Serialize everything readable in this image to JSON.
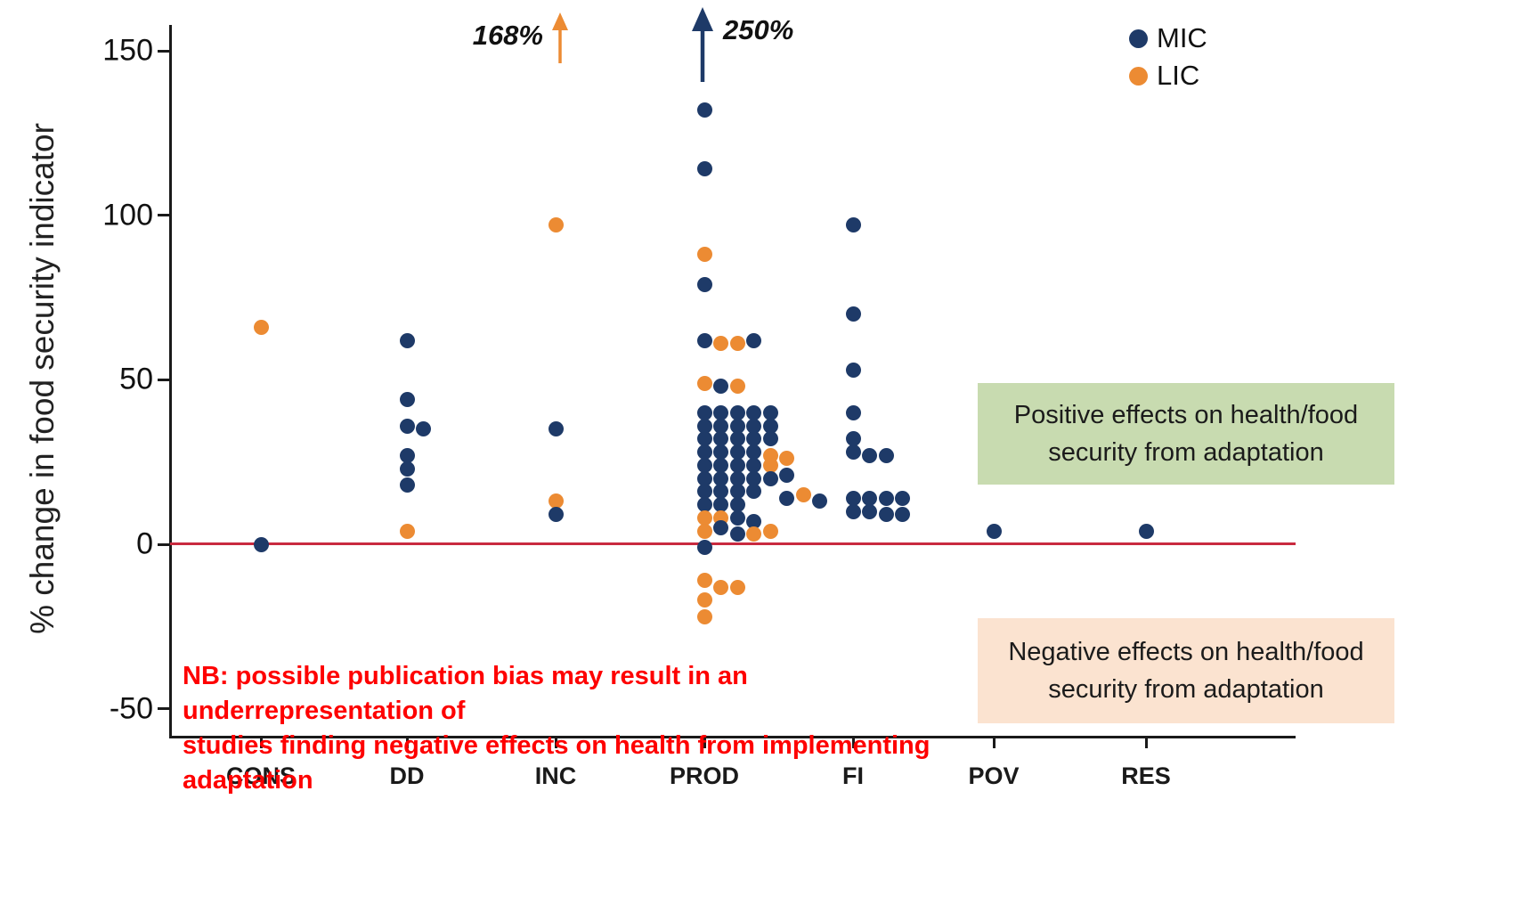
{
  "chart_data": {
    "type": "scatter",
    "title": "",
    "ylabel": "% change in food security indicator",
    "xlabel": "",
    "categories": [
      "CONS",
      "DD",
      "INC",
      "PROD",
      "FI",
      "POV",
      "RES"
    ],
    "yticks": [
      150,
      100,
      50,
      0,
      -50
    ],
    "ylim": [
      -60,
      158
    ],
    "grid": false,
    "legend_position": "top-right",
    "zero_line_color": "#c92a3f",
    "series_colors": {
      "MIC": "#1e3a68",
      "LIC": "#ec8b33"
    },
    "legend": [
      {
        "label": "MIC",
        "color": "#1e3a68"
      },
      {
        "label": "LIC",
        "color": "#ec8b33"
      }
    ],
    "annotations": [
      {
        "text": "168%",
        "series": "LIC",
        "category": "INC",
        "meaning": "off-scale LIC value indicated by orange up arrow"
      },
      {
        "text": "250%",
        "series": "MIC",
        "category": "PROD",
        "meaning": "off-scale MIC value indicated by navy up arrow"
      }
    ],
    "points": [
      {
        "c": "CONS",
        "s": "LIC",
        "v": 66,
        "dx": 0
      },
      {
        "c": "CONS",
        "s": "MIC",
        "v": 0,
        "dx": 0
      },
      {
        "c": "DD",
        "s": "MIC",
        "v": 62,
        "dx": 0
      },
      {
        "c": "DD",
        "s": "MIC",
        "v": 44,
        "dx": 0
      },
      {
        "c": "DD",
        "s": "MIC",
        "v": 36,
        "dx": 0
      },
      {
        "c": "DD",
        "s": "MIC",
        "v": 35,
        "dx": 1
      },
      {
        "c": "DD",
        "s": "MIC",
        "v": 27,
        "dx": 0
      },
      {
        "c": "DD",
        "s": "MIC",
        "v": 23,
        "dx": 0
      },
      {
        "c": "DD",
        "s": "MIC",
        "v": 18,
        "dx": 0
      },
      {
        "c": "DD",
        "s": "LIC",
        "v": 4,
        "dx": 0
      },
      {
        "c": "INC",
        "s": "LIC",
        "v": 97,
        "dx": 0
      },
      {
        "c": "INC",
        "s": "MIC",
        "v": 35,
        "dx": 0
      },
      {
        "c": "INC",
        "s": "LIC",
        "v": 13,
        "dx": 0
      },
      {
        "c": "INC",
        "s": "MIC",
        "v": 9,
        "dx": 0
      },
      {
        "c": "PROD",
        "s": "MIC",
        "v": 132,
        "dx": 0
      },
      {
        "c": "PROD",
        "s": "MIC",
        "v": 114,
        "dx": 0
      },
      {
        "c": "PROD",
        "s": "LIC",
        "v": 88,
        "dx": 0
      },
      {
        "c": "PROD",
        "s": "MIC",
        "v": 79,
        "dx": 0
      },
      {
        "c": "PROD",
        "s": "MIC",
        "v": 62,
        "dx": 0
      },
      {
        "c": "PROD",
        "s": "LIC",
        "v": 61,
        "dx": 1
      },
      {
        "c": "PROD",
        "s": "LIC",
        "v": 61,
        "dx": 2
      },
      {
        "c": "PROD",
        "s": "MIC",
        "v": 62,
        "dx": 3
      },
      {
        "c": "PROD",
        "s": "LIC",
        "v": 49,
        "dx": 0
      },
      {
        "c": "PROD",
        "s": "MIC",
        "v": 48,
        "dx": 1
      },
      {
        "c": "PROD",
        "s": "LIC",
        "v": 48,
        "dx": 2
      },
      {
        "c": "PROD",
        "s": "MIC",
        "v": 40,
        "dx": 0
      },
      {
        "c": "PROD",
        "s": "MIC",
        "v": 40,
        "dx": 1
      },
      {
        "c": "PROD",
        "s": "MIC",
        "v": 40,
        "dx": 2
      },
      {
        "c": "PROD",
        "s": "MIC",
        "v": 40,
        "dx": 3
      },
      {
        "c": "PROD",
        "s": "MIC",
        "v": 40,
        "dx": 4
      },
      {
        "c": "PROD",
        "s": "MIC",
        "v": 36,
        "dx": 0
      },
      {
        "c": "PROD",
        "s": "MIC",
        "v": 36,
        "dx": 1
      },
      {
        "c": "PROD",
        "s": "MIC",
        "v": 36,
        "dx": 2
      },
      {
        "c": "PROD",
        "s": "MIC",
        "v": 36,
        "dx": 3
      },
      {
        "c": "PROD",
        "s": "MIC",
        "v": 36,
        "dx": 4
      },
      {
        "c": "PROD",
        "s": "MIC",
        "v": 32,
        "dx": 0
      },
      {
        "c": "PROD",
        "s": "MIC",
        "v": 32,
        "dx": 1
      },
      {
        "c": "PROD",
        "s": "MIC",
        "v": 32,
        "dx": 2
      },
      {
        "c": "PROD",
        "s": "MIC",
        "v": 32,
        "dx": 3
      },
      {
        "c": "PROD",
        "s": "MIC",
        "v": 32,
        "dx": 4
      },
      {
        "c": "PROD",
        "s": "MIC",
        "v": 28,
        "dx": 0
      },
      {
        "c": "PROD",
        "s": "MIC",
        "v": 28,
        "dx": 1
      },
      {
        "c": "PROD",
        "s": "MIC",
        "v": 28,
        "dx": 2
      },
      {
        "c": "PROD",
        "s": "MIC",
        "v": 28,
        "dx": 3
      },
      {
        "c": "PROD",
        "s": "LIC",
        "v": 27,
        "dx": 4
      },
      {
        "c": "PROD",
        "s": "MIC",
        "v": 24,
        "dx": 0
      },
      {
        "c": "PROD",
        "s": "MIC",
        "v": 24,
        "dx": 1
      },
      {
        "c": "PROD",
        "s": "MIC",
        "v": 24,
        "dx": 2
      },
      {
        "c": "PROD",
        "s": "MIC",
        "v": 24,
        "dx": 3
      },
      {
        "c": "PROD",
        "s": "LIC",
        "v": 24,
        "dx": 4
      },
      {
        "c": "PROD",
        "s": "LIC",
        "v": 26,
        "dx": 5
      },
      {
        "c": "PROD",
        "s": "MIC",
        "v": 20,
        "dx": 0
      },
      {
        "c": "PROD",
        "s": "MIC",
        "v": 20,
        "dx": 1
      },
      {
        "c": "PROD",
        "s": "MIC",
        "v": 20,
        "dx": 2
      },
      {
        "c": "PROD",
        "s": "MIC",
        "v": 20,
        "dx": 3
      },
      {
        "c": "PROD",
        "s": "MIC",
        "v": 20,
        "dx": 4
      },
      {
        "c": "PROD",
        "s": "MIC",
        "v": 21,
        "dx": 5
      },
      {
        "c": "PROD",
        "s": "MIC",
        "v": 16,
        "dx": 0
      },
      {
        "c": "PROD",
        "s": "MIC",
        "v": 16,
        "dx": 1
      },
      {
        "c": "PROD",
        "s": "MIC",
        "v": 16,
        "dx": 2
      },
      {
        "c": "PROD",
        "s": "MIC",
        "v": 16,
        "dx": 3
      },
      {
        "c": "PROD",
        "s": "MIC",
        "v": 14,
        "dx": 5
      },
      {
        "c": "PROD",
        "s": "LIC",
        "v": 15,
        "dx": 6
      },
      {
        "c": "PROD",
        "s": "MIC",
        "v": 13,
        "dx": 7
      },
      {
        "c": "PROD",
        "s": "MIC",
        "v": 12,
        "dx": 0
      },
      {
        "c": "PROD",
        "s": "MIC",
        "v": 12,
        "dx": 1
      },
      {
        "c": "PROD",
        "s": "MIC",
        "v": 12,
        "dx": 2
      },
      {
        "c": "PROD",
        "s": "LIC",
        "v": 8,
        "dx": 0
      },
      {
        "c": "PROD",
        "s": "LIC",
        "v": 8,
        "dx": 1
      },
      {
        "c": "PROD",
        "s": "MIC",
        "v": 8,
        "dx": 2
      },
      {
        "c": "PROD",
        "s": "MIC",
        "v": 7,
        "dx": 3
      },
      {
        "c": "PROD",
        "s": "LIC",
        "v": 4,
        "dx": 0
      },
      {
        "c": "PROD",
        "s": "MIC",
        "v": 5,
        "dx": 1
      },
      {
        "c": "PROD",
        "s": "MIC",
        "v": 3,
        "dx": 2
      },
      {
        "c": "PROD",
        "s": "LIC",
        "v": 3,
        "dx": 3
      },
      {
        "c": "PROD",
        "s": "LIC",
        "v": 4,
        "dx": 4
      },
      {
        "c": "PROD",
        "s": "MIC",
        "v": -1,
        "dx": 0
      },
      {
        "c": "PROD",
        "s": "LIC",
        "v": -11,
        "dx": 0
      },
      {
        "c": "PROD",
        "s": "LIC",
        "v": -13,
        "dx": 1
      },
      {
        "c": "PROD",
        "s": "LIC",
        "v": -13,
        "dx": 2
      },
      {
        "c": "PROD",
        "s": "LIC",
        "v": -17,
        "dx": 0
      },
      {
        "c": "PROD",
        "s": "LIC",
        "v": -22,
        "dx": 0
      },
      {
        "c": "FI",
        "s": "MIC",
        "v": 97,
        "dx": 0
      },
      {
        "c": "FI",
        "s": "MIC",
        "v": 70,
        "dx": 0
      },
      {
        "c": "FI",
        "s": "MIC",
        "v": 53,
        "dx": 0
      },
      {
        "c": "FI",
        "s": "MIC",
        "v": 40,
        "dx": 0
      },
      {
        "c": "FI",
        "s": "MIC",
        "v": 32,
        "dx": 0
      },
      {
        "c": "FI",
        "s": "MIC",
        "v": 28,
        "dx": 0
      },
      {
        "c": "FI",
        "s": "MIC",
        "v": 27,
        "dx": 1
      },
      {
        "c": "FI",
        "s": "MIC",
        "v": 27,
        "dx": 2
      },
      {
        "c": "FI",
        "s": "MIC",
        "v": 14,
        "dx": 0
      },
      {
        "c": "FI",
        "s": "MIC",
        "v": 14,
        "dx": 1
      },
      {
        "c": "FI",
        "s": "MIC",
        "v": 14,
        "dx": 2
      },
      {
        "c": "FI",
        "s": "MIC",
        "v": 14,
        "dx": 3
      },
      {
        "c": "FI",
        "s": "MIC",
        "v": 10,
        "dx": 0
      },
      {
        "c": "FI",
        "s": "MIC",
        "v": 10,
        "dx": 1
      },
      {
        "c": "FI",
        "s": "MIC",
        "v": 9,
        "dx": 2
      },
      {
        "c": "FI",
        "s": "MIC",
        "v": 9,
        "dx": 3
      },
      {
        "c": "POV",
        "s": "MIC",
        "v": 4,
        "dx": 0
      },
      {
        "c": "RES",
        "s": "MIC",
        "v": 4,
        "dx": 0
      }
    ]
  },
  "zones": {
    "positive": {
      "text": "Positive effects on health/food security from adaptation",
      "bg_color": "#c8dbb0"
    },
    "negative": {
      "text": "Negative effects on health/food security from adaptation",
      "bg_color": "#fbe3d0"
    }
  },
  "notes": {
    "nb_line1": "NB: possible publication bias may result in an underrepresentation of",
    "nb_line2": "studies finding negative effects on health from implementing adaptation",
    "color": "#fe0000"
  }
}
